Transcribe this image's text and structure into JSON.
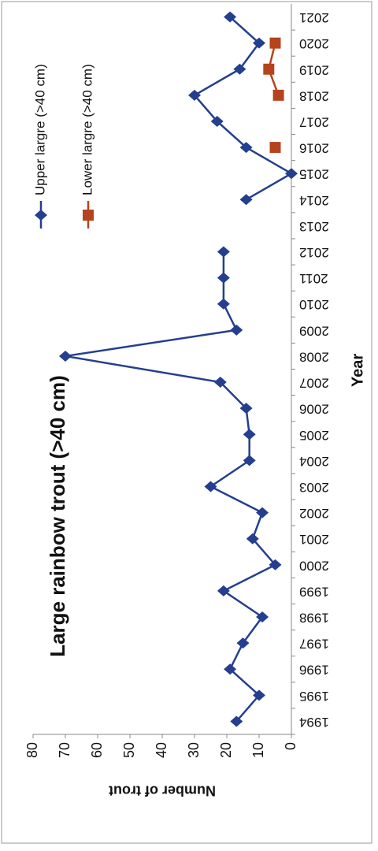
{
  "chart_data": {
    "type": "line",
    "title": "Large rainbow trout (>40 cm)",
    "x_label": "Year",
    "y_label": "Number of trout",
    "categories": [
      "1994",
      "1995",
      "1996",
      "1997",
      "1998",
      "1999",
      "2000",
      "2001",
      "2002",
      "2003",
      "2004",
      "2005",
      "2006",
      "2007",
      "2008",
      "2009",
      "2010",
      "2011",
      "2012",
      "2013",
      "2014",
      "2015",
      "2016",
      "2017",
      "2018",
      "2019",
      "2020",
      "2021"
    ],
    "series": [
      {
        "name": "Upper largre (>40 cm)",
        "color": "#243f8f",
        "marker": "diamond",
        "values": [
          17,
          10,
          19,
          15,
          9,
          21,
          5,
          12,
          9,
          25,
          13,
          13,
          14,
          22,
          70,
          17,
          21,
          21,
          21,
          null,
          14,
          0,
          14,
          23,
          30,
          16,
          10,
          19
        ]
      },
      {
        "name": "Lower largre (>40 cm)",
        "color": "#b5441c",
        "marker": "square",
        "values": [
          null,
          null,
          null,
          null,
          null,
          null,
          null,
          null,
          null,
          null,
          null,
          null,
          null,
          null,
          null,
          null,
          null,
          null,
          null,
          null,
          null,
          null,
          5,
          null,
          4,
          7,
          5,
          null
        ]
      }
    ],
    "ylim": [
      0,
      80
    ],
    "yticks": [
      0,
      10,
      20,
      30,
      40,
      50,
      60,
      70,
      80
    ],
    "grid": false
  }
}
